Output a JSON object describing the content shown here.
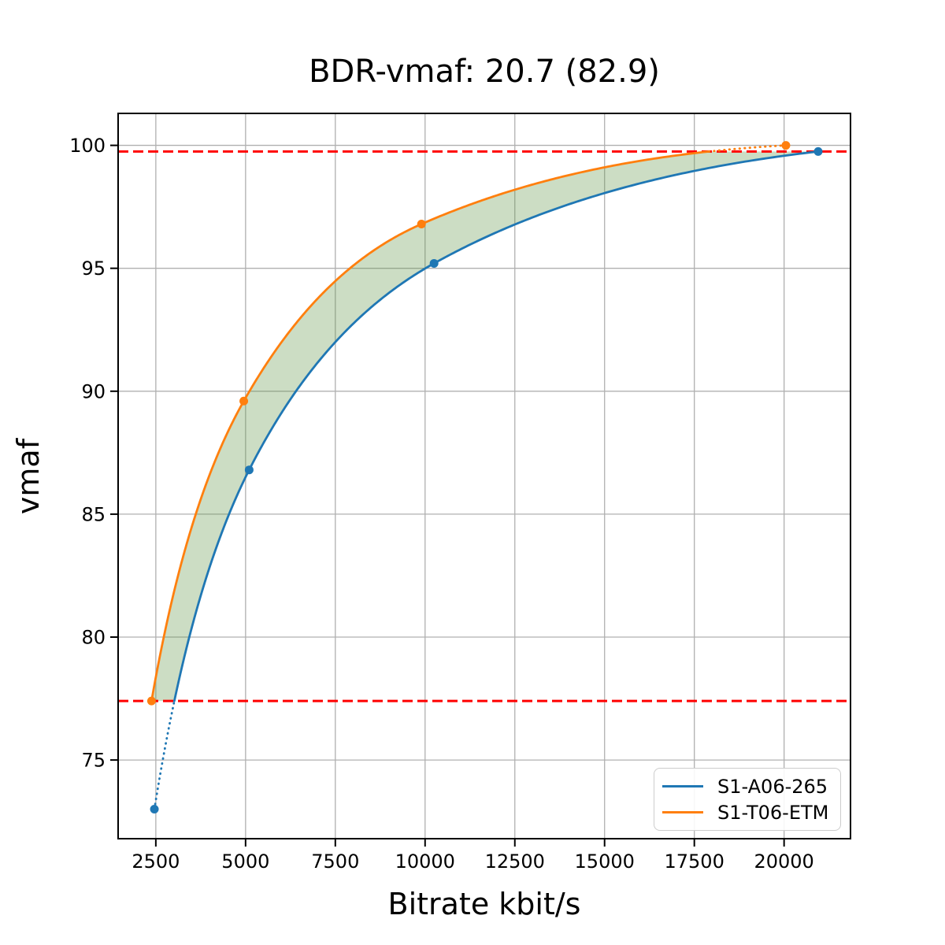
{
  "title": "BDR-vmaf: 20.7 (82.9)",
  "chart_data": {
    "type": "line",
    "title": "BDR-vmaf: 20.7 (82.9)",
    "xlabel": "Bitrate kbit/s",
    "ylabel": "vmaf",
    "xlim": [
      1450,
      21850
    ],
    "ylim": [
      71.8,
      101.3
    ],
    "x_ticks": [
      2500,
      5000,
      7500,
      10000,
      12500,
      15000,
      17500,
      20000
    ],
    "y_ticks": [
      75,
      80,
      85,
      90,
      95,
      100
    ],
    "grid": true,
    "interpolation": "pchip-log-x",
    "series": [
      {
        "name": "S1-A06-265",
        "color": "#1f77b4",
        "marker": "circle",
        "x": [
          2460,
          5100,
          10250,
          20950
        ],
        "y": [
          73.0,
          86.8,
          95.2,
          99.75
        ]
      },
      {
        "name": "S1-T06-ETM",
        "color": "#ff7f0e",
        "marker": "circle",
        "x": [
          2380,
          4950,
          9900,
          20050
        ],
        "y": [
          77.4,
          89.6,
          96.8,
          100.0
        ]
      }
    ],
    "common_vmaf_range": [
      77.4,
      99.75
    ],
    "line_style_note": "curves drawn dotted outside common_vmaf_range",
    "hlines": {
      "values": [
        77.4,
        99.75
      ],
      "color": "#ff0000",
      "style": "dashed"
    },
    "fill_between": {
      "color": "#609648",
      "opacity": 0.32,
      "clip_y": [
        77.4,
        99.75
      ]
    },
    "legend": {
      "position": "lower-right",
      "entries": [
        "S1-A06-265",
        "S1-T06-ETM"
      ]
    }
  }
}
